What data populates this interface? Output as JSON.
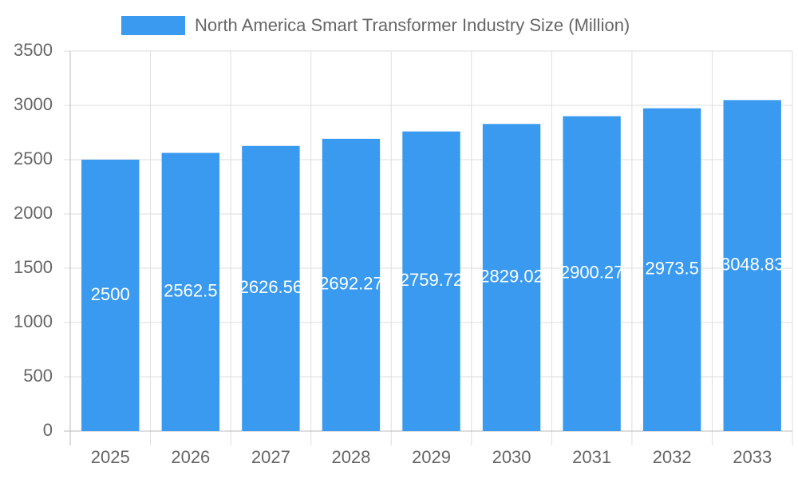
{
  "chart_data": {
    "type": "bar",
    "categories": [
      "2025",
      "2026",
      "2027",
      "2028",
      "2029",
      "2030",
      "2031",
      "2032",
      "2033"
    ],
    "series": [
      {
        "name": "North America Smart Transformer Industry Size (Million)",
        "color": "#3a9aef",
        "values": [
          2500,
          2562.5,
          2626.56,
          2692.27,
          2759.72,
          2829.02,
          2900.27,
          2973.5,
          3048.83
        ]
      }
    ],
    "ylim": [
      0,
      3500
    ],
    "yticks": [
      0,
      500,
      1000,
      1500,
      2000,
      2500,
      3000,
      3500
    ],
    "grid": true
  }
}
